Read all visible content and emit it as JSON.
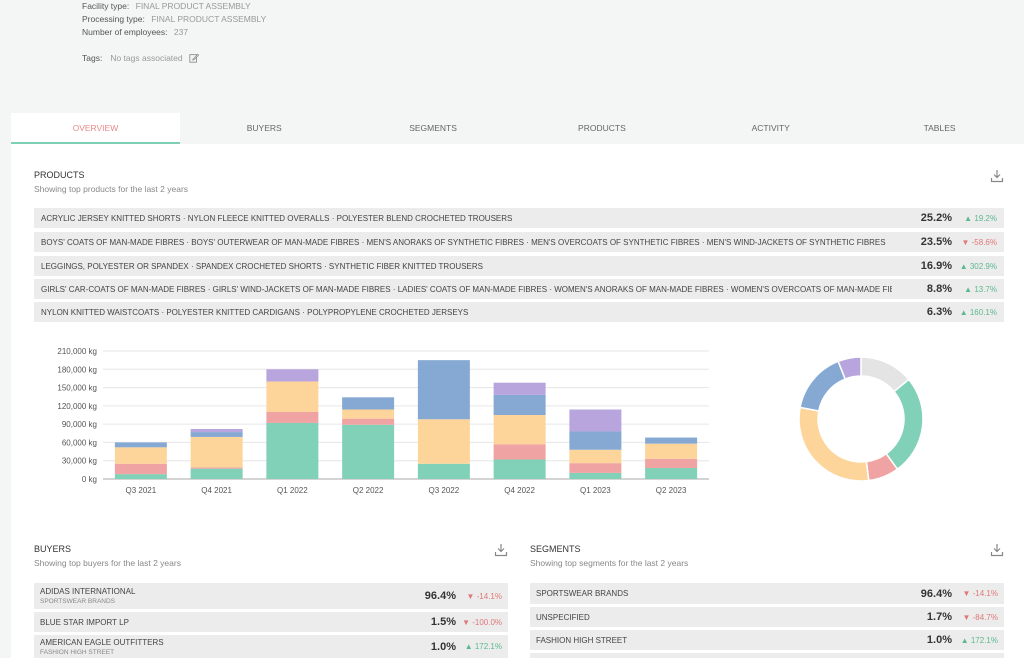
{
  "facility": {
    "facility_type_label": "Facility type:",
    "facility_type_value": "FINAL PRODUCT ASSEMBLY",
    "processing_type_label": "Processing type:",
    "processing_type_value": "FINAL PRODUCT ASSEMBLY",
    "employees_label": "Number of employees:",
    "employees_value": "237",
    "tags_label": "Tags:",
    "tags_value": "No tags associated"
  },
  "tabs": [
    {
      "label": "OVERVIEW"
    },
    {
      "label": "BUYERS"
    },
    {
      "label": "SEGMENTS"
    },
    {
      "label": "PRODUCTS"
    },
    {
      "label": "ACTIVITY"
    },
    {
      "label": "TABLES"
    }
  ],
  "products": {
    "title": "PRODUCTS",
    "subtitle": "Showing top products for the last 2 years",
    "rows": [
      {
        "name": "ACRYLIC JERSEY KNITTED SHORTS · NYLON FLEECE KNITTED OVERALLS · POLYESTER BLEND CROCHETED TROUSERS",
        "pct": "25.2%",
        "change": "19.2%",
        "dir": "up"
      },
      {
        "name": "BOYS' COATS OF MAN-MADE FIBRES · BOYS' OUTERWEAR OF MAN-MADE FIBRES · MEN'S ANORAKS OF SYNTHETIC FIBRES · MEN'S OVERCOATS OF SYNTHETIC FIBRES · MEN'S WIND-JACKETS OF SYNTHETIC FIBRES",
        "pct": "23.5%",
        "change": "-58.6%",
        "dir": "down"
      },
      {
        "name": "LEGGINGS, POLYESTER OR SPANDEX · SPANDEX CROCHETED SHORTS · SYNTHETIC FIBER KNITTED TROUSERS",
        "pct": "16.9%",
        "change": "302.9%",
        "dir": "up"
      },
      {
        "name": "GIRLS' CAR-COATS OF MAN-MADE FIBRES · GIRLS' WIND-JACKETS OF MAN-MADE FIBRES · LADIES' COATS OF MAN-MADE FIBRES · WOMEN'S ANORAKS OF MAN-MADE FIBRES · WOMEN'S OVERCOATS OF MAN-MADE FIBRES",
        "pct": "8.8%",
        "change": "13.7%",
        "dir": "up"
      },
      {
        "name": "NYLON KNITTED WAISTCOATS · POLYESTER KNITTED CARDIGANS · POLYPROPYLENE CROCHETED JERSEYS",
        "pct": "6.3%",
        "change": "160.1%",
        "dir": "up"
      }
    ]
  },
  "buyers": {
    "title": "BUYERS",
    "subtitle": "Showing top buyers for the last 2 years",
    "rows": [
      {
        "name": "ADIDAS INTERNATIONAL",
        "sub": "SPORTSWEAR BRANDS",
        "pct": "96.4%",
        "change": "-14.1%",
        "dir": "down"
      },
      {
        "name": "BLUE STAR IMPORT LP",
        "sub": "",
        "pct": "1.5%",
        "change": "-100.0%",
        "dir": "down"
      },
      {
        "name": "AMERICAN EAGLE OUTFITTERS",
        "sub": "FASHION HIGH STREET",
        "pct": "1.0%",
        "change": "172.1%",
        "dir": "up"
      }
    ]
  },
  "segments": {
    "title": "SEGMENTS",
    "subtitle": "Showing top segments for the last 2 years",
    "rows": [
      {
        "name": "SPORTSWEAR BRANDS",
        "pct": "96.4%",
        "change": "-14.1%",
        "dir": "down"
      },
      {
        "name": "UNSPECIFIED",
        "pct": "1.7%",
        "change": "-84.7%",
        "dir": "down"
      },
      {
        "name": "FASHION HIGH STREET",
        "pct": "1.0%",
        "change": "172.1%",
        "dir": "up"
      }
    ]
  },
  "colors": {
    "green": "#80d1b8",
    "red": "#f0a3a3",
    "orange": "#fdd59a",
    "blue": "#86a9d3",
    "purple": "#b8a5dd",
    "grey": "#e4e4e4",
    "up": "#5cb88f",
    "down": "#e07878"
  },
  "chart_data": [
    {
      "type": "bar",
      "stacked": true,
      "categories": [
        "Q3 2021",
        "Q4 2021",
        "Q1 2022",
        "Q2 2022",
        "Q3 2022",
        "Q4 2022",
        "Q1 2023",
        "Q2 2023"
      ],
      "yticks": [
        "0 kg",
        "30,000 kg",
        "60,000 kg",
        "90,000 kg",
        "120,000 kg",
        "150,000 kg",
        "180,000 kg",
        "210,000 kg"
      ],
      "ylim": [
        0,
        210000
      ],
      "grid": true,
      "series": [
        {
          "color": "#80d1b8",
          "values": [
            8000,
            17000,
            92000,
            89000,
            25000,
            32000,
            10000,
            18000
          ]
        },
        {
          "color": "#f0a3a3",
          "values": [
            17000,
            2000,
            18000,
            10000,
            0,
            25000,
            16000,
            15000
          ]
        },
        {
          "color": "#fdd59a",
          "values": [
            27000,
            50000,
            50000,
            15000,
            73000,
            48000,
            22000,
            25000
          ]
        },
        {
          "color": "#86a9d3",
          "values": [
            8000,
            8000,
            0,
            20000,
            97000,
            33000,
            30000,
            10000
          ]
        },
        {
          "color": "#b8a5dd",
          "values": [
            0,
            5000,
            20000,
            0,
            0,
            20000,
            36000,
            0
          ]
        }
      ]
    },
    {
      "type": "pie",
      "donut": true,
      "slices": [
        {
          "color": "#e4e4e4",
          "value": 14
        },
        {
          "color": "#80d1b8",
          "value": 26
        },
        {
          "color": "#f0a3a3",
          "value": 8
        },
        {
          "color": "#fdd59a",
          "value": 30
        },
        {
          "color": "#86a9d3",
          "value": 16
        },
        {
          "color": "#b8a5dd",
          "value": 6
        }
      ]
    }
  ]
}
